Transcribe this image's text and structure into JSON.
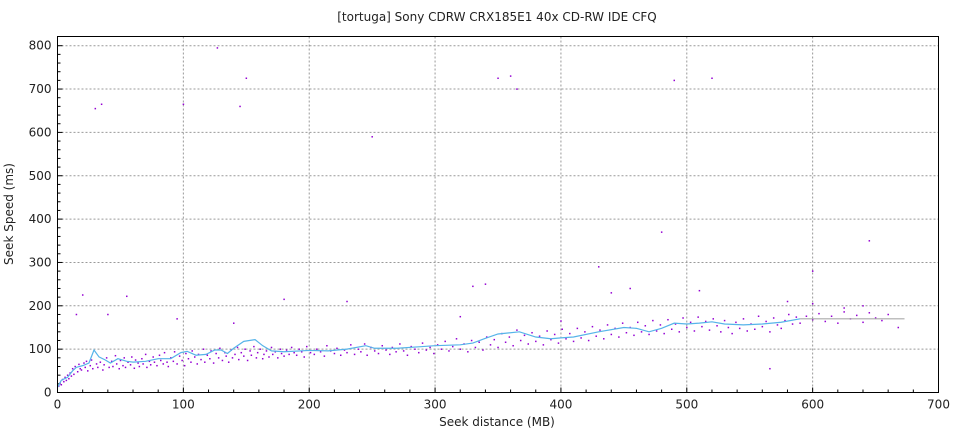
{
  "chart_data": {
    "type": "scatter",
    "title": "[tortuga] Sony CDRW CRX185E1 40x CD-RW IDE CFQ",
    "xlabel": "Seek distance (MB)",
    "ylabel": "Seek Speed (ms)",
    "xlim": [
      0,
      700
    ],
    "ylim": [
      0,
      820
    ],
    "xticks": [
      0,
      100,
      200,
      300,
      400,
      500,
      600,
      700
    ],
    "yticks": [
      0,
      100,
      200,
      300,
      400,
      500,
      600,
      700,
      800
    ],
    "grid": true,
    "colors": {
      "points": "#9400d3",
      "mean": "#56b4e9",
      "mean_tail": "#aaaaaa"
    },
    "mean_line": [
      [
        0,
        12
      ],
      [
        3,
        28
      ],
      [
        8,
        35
      ],
      [
        12,
        50
      ],
      [
        15,
        58
      ],
      [
        20,
        62
      ],
      [
        25,
        68
      ],
      [
        29,
        98
      ],
      [
        33,
        82
      ],
      [
        38,
        75
      ],
      [
        42,
        68
      ],
      [
        48,
        78
      ],
      [
        55,
        72
      ],
      [
        60,
        70
      ],
      [
        70,
        72
      ],
      [
        80,
        78
      ],
      [
        90,
        78
      ],
      [
        98,
        92
      ],
      [
        103,
        95
      ],
      [
        110,
        86
      ],
      [
        118,
        88
      ],
      [
        125,
        98
      ],
      [
        130,
        98
      ],
      [
        135,
        90
      ],
      [
        140,
        102
      ],
      [
        148,
        118
      ],
      [
        157,
        122
      ],
      [
        163,
        108
      ],
      [
        170,
        96
      ],
      [
        180,
        94
      ],
      [
        200,
        97
      ],
      [
        215,
        96
      ],
      [
        230,
        100
      ],
      [
        245,
        108
      ],
      [
        252,
        102
      ],
      [
        270,
        102
      ],
      [
        290,
        106
      ],
      [
        300,
        108
      ],
      [
        320,
        110
      ],
      [
        330,
        114
      ],
      [
        340,
        125
      ],
      [
        350,
        135
      ],
      [
        367,
        140
      ],
      [
        380,
        128
      ],
      [
        392,
        124
      ],
      [
        400,
        126
      ],
      [
        410,
        128
      ],
      [
        430,
        140
      ],
      [
        450,
        150
      ],
      [
        460,
        148
      ],
      [
        470,
        140
      ],
      [
        480,
        148
      ],
      [
        490,
        160
      ],
      [
        500,
        158
      ],
      [
        510,
        160
      ],
      [
        520,
        163
      ],
      [
        530,
        158
      ],
      [
        545,
        156
      ],
      [
        560,
        158
      ],
      [
        575,
        162
      ],
      [
        590,
        170
      ]
    ],
    "mean_tail": [
      [
        590,
        170
      ],
      [
        620,
        170
      ],
      [
        650,
        170
      ],
      [
        673,
        170
      ]
    ],
    "points": [
      [
        30,
        655
      ],
      [
        35,
        665
      ],
      [
        145,
        660
      ],
      [
        150,
        725
      ],
      [
        127,
        795
      ],
      [
        100,
        665
      ],
      [
        250,
        590
      ],
      [
        350,
        725
      ],
      [
        360,
        730
      ],
      [
        365,
        700
      ],
      [
        490,
        720
      ],
      [
        520,
        725
      ],
      [
        480,
        370
      ],
      [
        645,
        350
      ],
      [
        600,
        280
      ],
      [
        430,
        290
      ],
      [
        20,
        225
      ],
      [
        55,
        222
      ],
      [
        455,
        240
      ],
      [
        340,
        250
      ],
      [
        330,
        245
      ],
      [
        600,
        205
      ],
      [
        640,
        200
      ],
      [
        625,
        195
      ],
      [
        580,
        210
      ],
      [
        15,
        180
      ],
      [
        40,
        180
      ],
      [
        95,
        170
      ],
      [
        180,
        215
      ],
      [
        230,
        210
      ],
      [
        140,
        160
      ],
      [
        320,
        175
      ],
      [
        400,
        165
      ],
      [
        440,
        230
      ],
      [
        510,
        235
      ],
      [
        1,
        15
      ],
      [
        2,
        22
      ],
      [
        3,
        18
      ],
      [
        4,
        30
      ],
      [
        5,
        25
      ],
      [
        6,
        35
      ],
      [
        7,
        28
      ],
      [
        8,
        40
      ],
      [
        9,
        32
      ],
      [
        10,
        45
      ],
      [
        11,
        38
      ],
      [
        12,
        55
      ],
      [
        13,
        42
      ],
      [
        14,
        60
      ],
      [
        16,
        48
      ],
      [
        17,
        65
      ],
      [
        18,
        55
      ],
      [
        19,
        52
      ],
      [
        21,
        68
      ],
      [
        22,
        58
      ],
      [
        23,
        72
      ],
      [
        24,
        50
      ],
      [
        26,
        62
      ],
      [
        27,
        75
      ],
      [
        28,
        55
      ],
      [
        31,
        66
      ],
      [
        32,
        58
      ],
      [
        34,
        70
      ],
      [
        36,
        52
      ],
      [
        37,
        64
      ],
      [
        39,
        80
      ],
      [
        41,
        58
      ],
      [
        43,
        72
      ],
      [
        44,
        60
      ],
      [
        46,
        85
      ],
      [
        47,
        66
      ],
      [
        49,
        55
      ],
      [
        50,
        74
      ],
      [
        52,
        62
      ],
      [
        53,
        80
      ],
      [
        54,
        58
      ],
      [
        56,
        70
      ],
      [
        58,
        64
      ],
      [
        59,
        82
      ],
      [
        61,
        56
      ],
      [
        62,
        75
      ],
      [
        64,
        68
      ],
      [
        65,
        60
      ],
      [
        67,
        78
      ],
      [
        68,
        66
      ],
      [
        70,
        88
      ],
      [
        71,
        58
      ],
      [
        73,
        72
      ],
      [
        74,
        64
      ],
      [
        76,
        82
      ],
      [
        77,
        70
      ],
      [
        79,
        62
      ],
      [
        81,
        86
      ],
      [
        82,
        74
      ],
      [
        84,
        66
      ],
      [
        85,
        92
      ],
      [
        87,
        70
      ],
      [
        88,
        60
      ],
      [
        90,
        80
      ],
      [
        92,
        72
      ],
      [
        93,
        94
      ],
      [
        95,
        66
      ],
      [
        97,
        84
      ],
      [
        99,
        74
      ],
      [
        101,
        62
      ],
      [
        102,
        90
      ],
      [
        104,
        78
      ],
      [
        106,
        70
      ],
      [
        107,
        96
      ],
      [
        109,
        82
      ],
      [
        111,
        66
      ],
      [
        112,
        88
      ],
      [
        114,
        76
      ],
      [
        116,
        100
      ],
      [
        117,
        70
      ],
      [
        119,
        86
      ],
      [
        121,
        78
      ],
      [
        122,
        96
      ],
      [
        124,
        68
      ],
      [
        126,
        90
      ],
      [
        128,
        80
      ],
      [
        129,
        102
      ],
      [
        131,
        74
      ],
      [
        133,
        92
      ],
      [
        134,
        84
      ],
      [
        136,
        70
      ],
      [
        138,
        98
      ],
      [
        139,
        80
      ],
      [
        141,
        88
      ],
      [
        143,
        104
      ],
      [
        144,
        76
      ],
      [
        146,
        92
      ],
      [
        148,
        84
      ],
      [
        149,
        100
      ],
      [
        151,
        74
      ],
      [
        153,
        96
      ],
      [
        154,
        86
      ],
      [
        156,
        106
      ],
      [
        158,
        80
      ],
      [
        159,
        92
      ],
      [
        161,
        100
      ],
      [
        163,
        78
      ],
      [
        164,
        88
      ],
      [
        166,
        96
      ],
      [
        168,
        82
      ],
      [
        170,
        104
      ],
      [
        171,
        88
      ],
      [
        173,
        94
      ],
      [
        175,
        80
      ],
      [
        177,
        100
      ],
      [
        178,
        90
      ],
      [
        180,
        84
      ],
      [
        182,
        98
      ],
      [
        184,
        88
      ],
      [
        186,
        104
      ],
      [
        188,
        92
      ],
      [
        190,
        86
      ],
      [
        192,
        100
      ],
      [
        194,
        94
      ],
      [
        196,
        82
      ],
      [
        198,
        106
      ],
      [
        201,
        92
      ],
      [
        204,
        88
      ],
      [
        206,
        100
      ],
      [
        209,
        94
      ],
      [
        212,
        84
      ],
      [
        214,
        108
      ],
      [
        217,
        96
      ],
      [
        220,
        90
      ],
      [
        222,
        102
      ],
      [
        225,
        86
      ],
      [
        228,
        98
      ],
      [
        230,
        92
      ],
      [
        233,
        110
      ],
      [
        236,
        88
      ],
      [
        239,
        100
      ],
      [
        241,
        94
      ],
      [
        244,
        112
      ],
      [
        246,
        86
      ],
      [
        249,
        104
      ],
      [
        252,
        96
      ],
      [
        255,
        90
      ],
      [
        258,
        108
      ],
      [
        261,
        98
      ],
      [
        264,
        88
      ],
      [
        266,
        104
      ],
      [
        269,
        94
      ],
      [
        272,
        112
      ],
      [
        275,
        96
      ],
      [
        278,
        86
      ],
      [
        281,
        106
      ],
      [
        284,
        100
      ],
      [
        287,
        92
      ],
      [
        290,
        114
      ],
      [
        293,
        98
      ],
      [
        296,
        104
      ],
      [
        299,
        90
      ],
      [
        302,
        110
      ],
      [
        305,
        100
      ],
      [
        308,
        118
      ],
      [
        311,
        96
      ],
      [
        314,
        106
      ],
      [
        317,
        124
      ],
      [
        320,
        100
      ],
      [
        323,
        112
      ],
      [
        326,
        94
      ],
      [
        329,
        120
      ],
      [
        332,
        104
      ],
      [
        335,
        116
      ],
      [
        338,
        98
      ],
      [
        341,
        128
      ],
      [
        344,
        110
      ],
      [
        347,
        122
      ],
      [
        350,
        104
      ],
      [
        353,
        136
      ],
      [
        356,
        116
      ],
      [
        359,
        128
      ],
      [
        362,
        108
      ],
      [
        365,
        144
      ],
      [
        368,
        120
      ],
      [
        371,
        132
      ],
      [
        374,
        112
      ],
      [
        377,
        138
      ],
      [
        380,
        118
      ],
      [
        383,
        130
      ],
      [
        386,
        110
      ],
      [
        389,
        142
      ],
      [
        392,
        122
      ],
      [
        395,
        134
      ],
      [
        398,
        114
      ],
      [
        401,
        146
      ],
      [
        404,
        124
      ],
      [
        407,
        136
      ],
      [
        410,
        118
      ],
      [
        413,
        148
      ],
      [
        416,
        126
      ],
      [
        419,
        140
      ],
      [
        422,
        120
      ],
      [
        425,
        152
      ],
      [
        428,
        130
      ],
      [
        431,
        144
      ],
      [
        434,
        124
      ],
      [
        437,
        156
      ],
      [
        440,
        134
      ],
      [
        443,
        148
      ],
      [
        446,
        128
      ],
      [
        449,
        160
      ],
      [
        452,
        138
      ],
      [
        455,
        150
      ],
      [
        458,
        132
      ],
      [
        461,
        162
      ],
      [
        464,
        140
      ],
      [
        467,
        154
      ],
      [
        470,
        134
      ],
      [
        473,
        166
      ],
      [
        476,
        142
      ],
      [
        479,
        156
      ],
      [
        482,
        136
      ],
      [
        485,
        168
      ],
      [
        488,
        146
      ],
      [
        491,
        158
      ],
      [
        494,
        140
      ],
      [
        497,
        172
      ],
      [
        500,
        150
      ],
      [
        503,
        162
      ],
      [
        506,
        142
      ],
      [
        509,
        174
      ],
      [
        512,
        152
      ],
      [
        515,
        164
      ],
      [
        518,
        144
      ],
      [
        521,
        170
      ],
      [
        524,
        154
      ],
      [
        527,
        140
      ],
      [
        530,
        166
      ],
      [
        533,
        150
      ],
      [
        536,
        136
      ],
      [
        539,
        162
      ],
      [
        542,
        148
      ],
      [
        545,
        170
      ],
      [
        548,
        142
      ],
      [
        551,
        158
      ],
      [
        554,
        146
      ],
      [
        557,
        176
      ],
      [
        560,
        152
      ],
      [
        563,
        164
      ],
      [
        566,
        140
      ],
      [
        569,
        172
      ],
      [
        572,
        156
      ],
      [
        575,
        148
      ],
      [
        578,
        166
      ],
      [
        581,
        180
      ],
      [
        584,
        158
      ],
      [
        587,
        174
      ],
      [
        590,
        160
      ],
      [
        595,
        176
      ],
      [
        600,
        168
      ],
      [
        605,
        182
      ],
      [
        610,
        164
      ],
      [
        615,
        176
      ],
      [
        620,
        160
      ],
      [
        625,
        186
      ],
      [
        630,
        170
      ],
      [
        635,
        178
      ],
      [
        640,
        162
      ],
      [
        645,
        184
      ],
      [
        650,
        172
      ],
      [
        655,
        166
      ],
      [
        660,
        180
      ],
      [
        668,
        150
      ],
      [
        566,
        55
      ]
    ]
  }
}
